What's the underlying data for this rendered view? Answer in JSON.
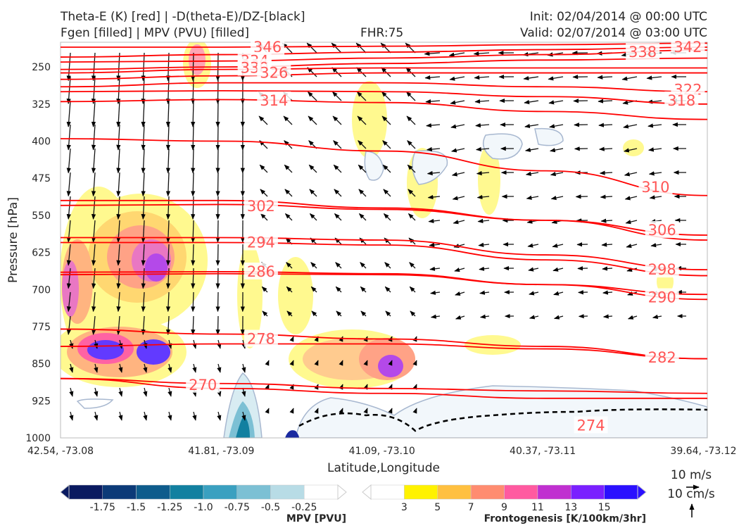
{
  "header": {
    "title_left_1": "Theta-E (K) [red] | -D(theta-E)/DZ-[black]",
    "title_left_2": "Fgen [filled] | MPV (PVU) [filled]",
    "fhr": "FHR:75",
    "init": "Init: 02/04/2014 @ 00:00 UTC",
    "valid": "Valid: 02/07/2014 @ 03:00 UTC"
  },
  "colors": {
    "theta_e": "#ff0000",
    "theta_e_label": "#ff5555",
    "mpv_outline": "#a8b8d0",
    "frontogenesis": [
      "#ffffff",
      "#fff200",
      "#ffc040",
      "#ff8c70",
      "#ff5aa0",
      "#c030d0",
      "#7a20ff",
      "#2a10ff"
    ],
    "mpv": [
      "#0a1a60",
      "#0c3a78",
      "#0e5c8c",
      "#1280a0",
      "#3aa0c0",
      "#7cc0d4",
      "#b8dce6",
      "#ffffff"
    ]
  },
  "chart_data": {
    "type": "cross-section",
    "xlabel": "Latitude,Longitude",
    "ylabel": "Pressure [hPa]",
    "x_ticks": [
      "42.54, -73.08",
      "41.81, -73.09",
      "41.09, -73.10",
      "40.37, -73.11",
      "39.64, -73.12"
    ],
    "y_ticks": [
      250,
      325,
      400,
      475,
      550,
      625,
      700,
      775,
      850,
      925,
      1000
    ],
    "ylim": [
      1000,
      200
    ],
    "theta_e_contours": [
      {
        "value": 346,
        "label": "346",
        "p": [
          210,
          210,
          208,
          205,
          202
        ],
        "label_at": [
          0.32,
          210
        ]
      },
      {
        "value": 342,
        "label": "342",
        "p": [
          230,
          225,
          220,
          215,
          210
        ],
        "label_at": [
          0.97,
          210
        ]
      },
      {
        "value": 338,
        "label": "338",
        "p": [
          240,
          238,
          232,
          225,
          216
        ],
        "label_at": [
          0.9,
          220
        ]
      },
      {
        "value": 334,
        "label": "334",
        "p": [
          255,
          250,
          243,
          236,
          232
        ],
        "label_at": [
          0.3,
          238
        ]
      },
      {
        "value": 330,
        "label": "330",
        "p": [
          262,
          255,
          252,
          252,
          252
        ],
        "label_at": [
          0.3,
          252
        ]
      },
      {
        "value": 326,
        "label": "326",
        "p": [
          275,
          268,
          262,
          262,
          262
        ],
        "label_at": [
          0.33,
          262
        ]
      },
      {
        "value": 322,
        "label": "322",
        "p": [
          290,
          282,
          282,
          290,
          300
        ],
        "label_at": [
          0.97,
          296
        ]
      },
      {
        "value": 318,
        "label": "318",
        "p": [
          300,
          298,
          300,
          310,
          325
        ],
        "label_at": [
          0.96,
          318
        ]
      },
      {
        "value": 314,
        "label": "314",
        "p": [
          320,
          316,
          322,
          340,
          356
        ],
        "label_at": [
          0.33,
          318
        ]
      },
      {
        "value": 310,
        "label": "310",
        "p": [
          395,
          400,
          420,
          460,
          510
        ],
        "label_at": [
          0.92,
          493
        ]
      },
      {
        "value": 306,
        "label": "306",
        "p": [
          520,
          520,
          535,
          560,
          600
        ],
        "label_at": [
          0.93,
          580
        ]
      },
      {
        "value": 302,
        "label": "302",
        "p": [
          530,
          528,
          538,
          560,
          590
        ],
        "label_at": [
          0.31,
          532
        ]
      },
      {
        "value": 298,
        "label": "298",
        "p": [
          595,
          595,
          600,
          630,
          660
        ],
        "label_at": [
          0.93,
          660
        ]
      },
      {
        "value": 294,
        "label": "294",
        "p": [
          605,
          605,
          610,
          640,
          672
        ],
        "label_at": [
          0.31,
          605
        ]
      },
      {
        "value": 290,
        "label": "290",
        "p": [
          670,
          668,
          670,
          690,
          720
        ],
        "label_at": [
          0.93,
          716
        ]
      },
      {
        "value": 286,
        "label": "286",
        "p": [
          665,
          664,
          668,
          690,
          710
        ],
        "label_at": [
          0.31,
          664
        ]
      },
      {
        "value": 282,
        "label": "282",
        "p": [
          815,
          810,
          810,
          820,
          840
        ],
        "label_at": [
          0.93,
          838
        ]
      },
      {
        "value": 278,
        "label": "278",
        "p": [
          780,
          790,
          800,
          815,
          840
        ],
        "label_at": [
          0.31,
          800
        ]
      },
      {
        "value": 274,
        "label": "274",
        "p": [
          880,
          890,
          900,
          905,
          910
        ],
        "label_at": [
          0.82,
          975
        ]
      },
      {
        "value": 270,
        "label": "270",
        "p": [
          880,
          900,
          910,
          920,
          920
        ],
        "label_at": [
          0.22,
          893
        ]
      }
    ],
    "mpv_colorbar": {
      "label": "MPV [PVU]",
      "ticks": [
        "-1.75",
        "-1.5",
        "-1.25",
        "-1.0",
        "-0.75",
        "-0.5",
        "-0.25"
      ]
    },
    "fgen_colorbar": {
      "label": "Frontogenesis [K/100km/3hr]",
      "ticks": [
        "3",
        "5",
        "7",
        "9",
        "11",
        "13",
        "15"
      ]
    },
    "wind_reference": {
      "horizontal": "10 m/s",
      "vertical": "10 cm/s"
    }
  }
}
